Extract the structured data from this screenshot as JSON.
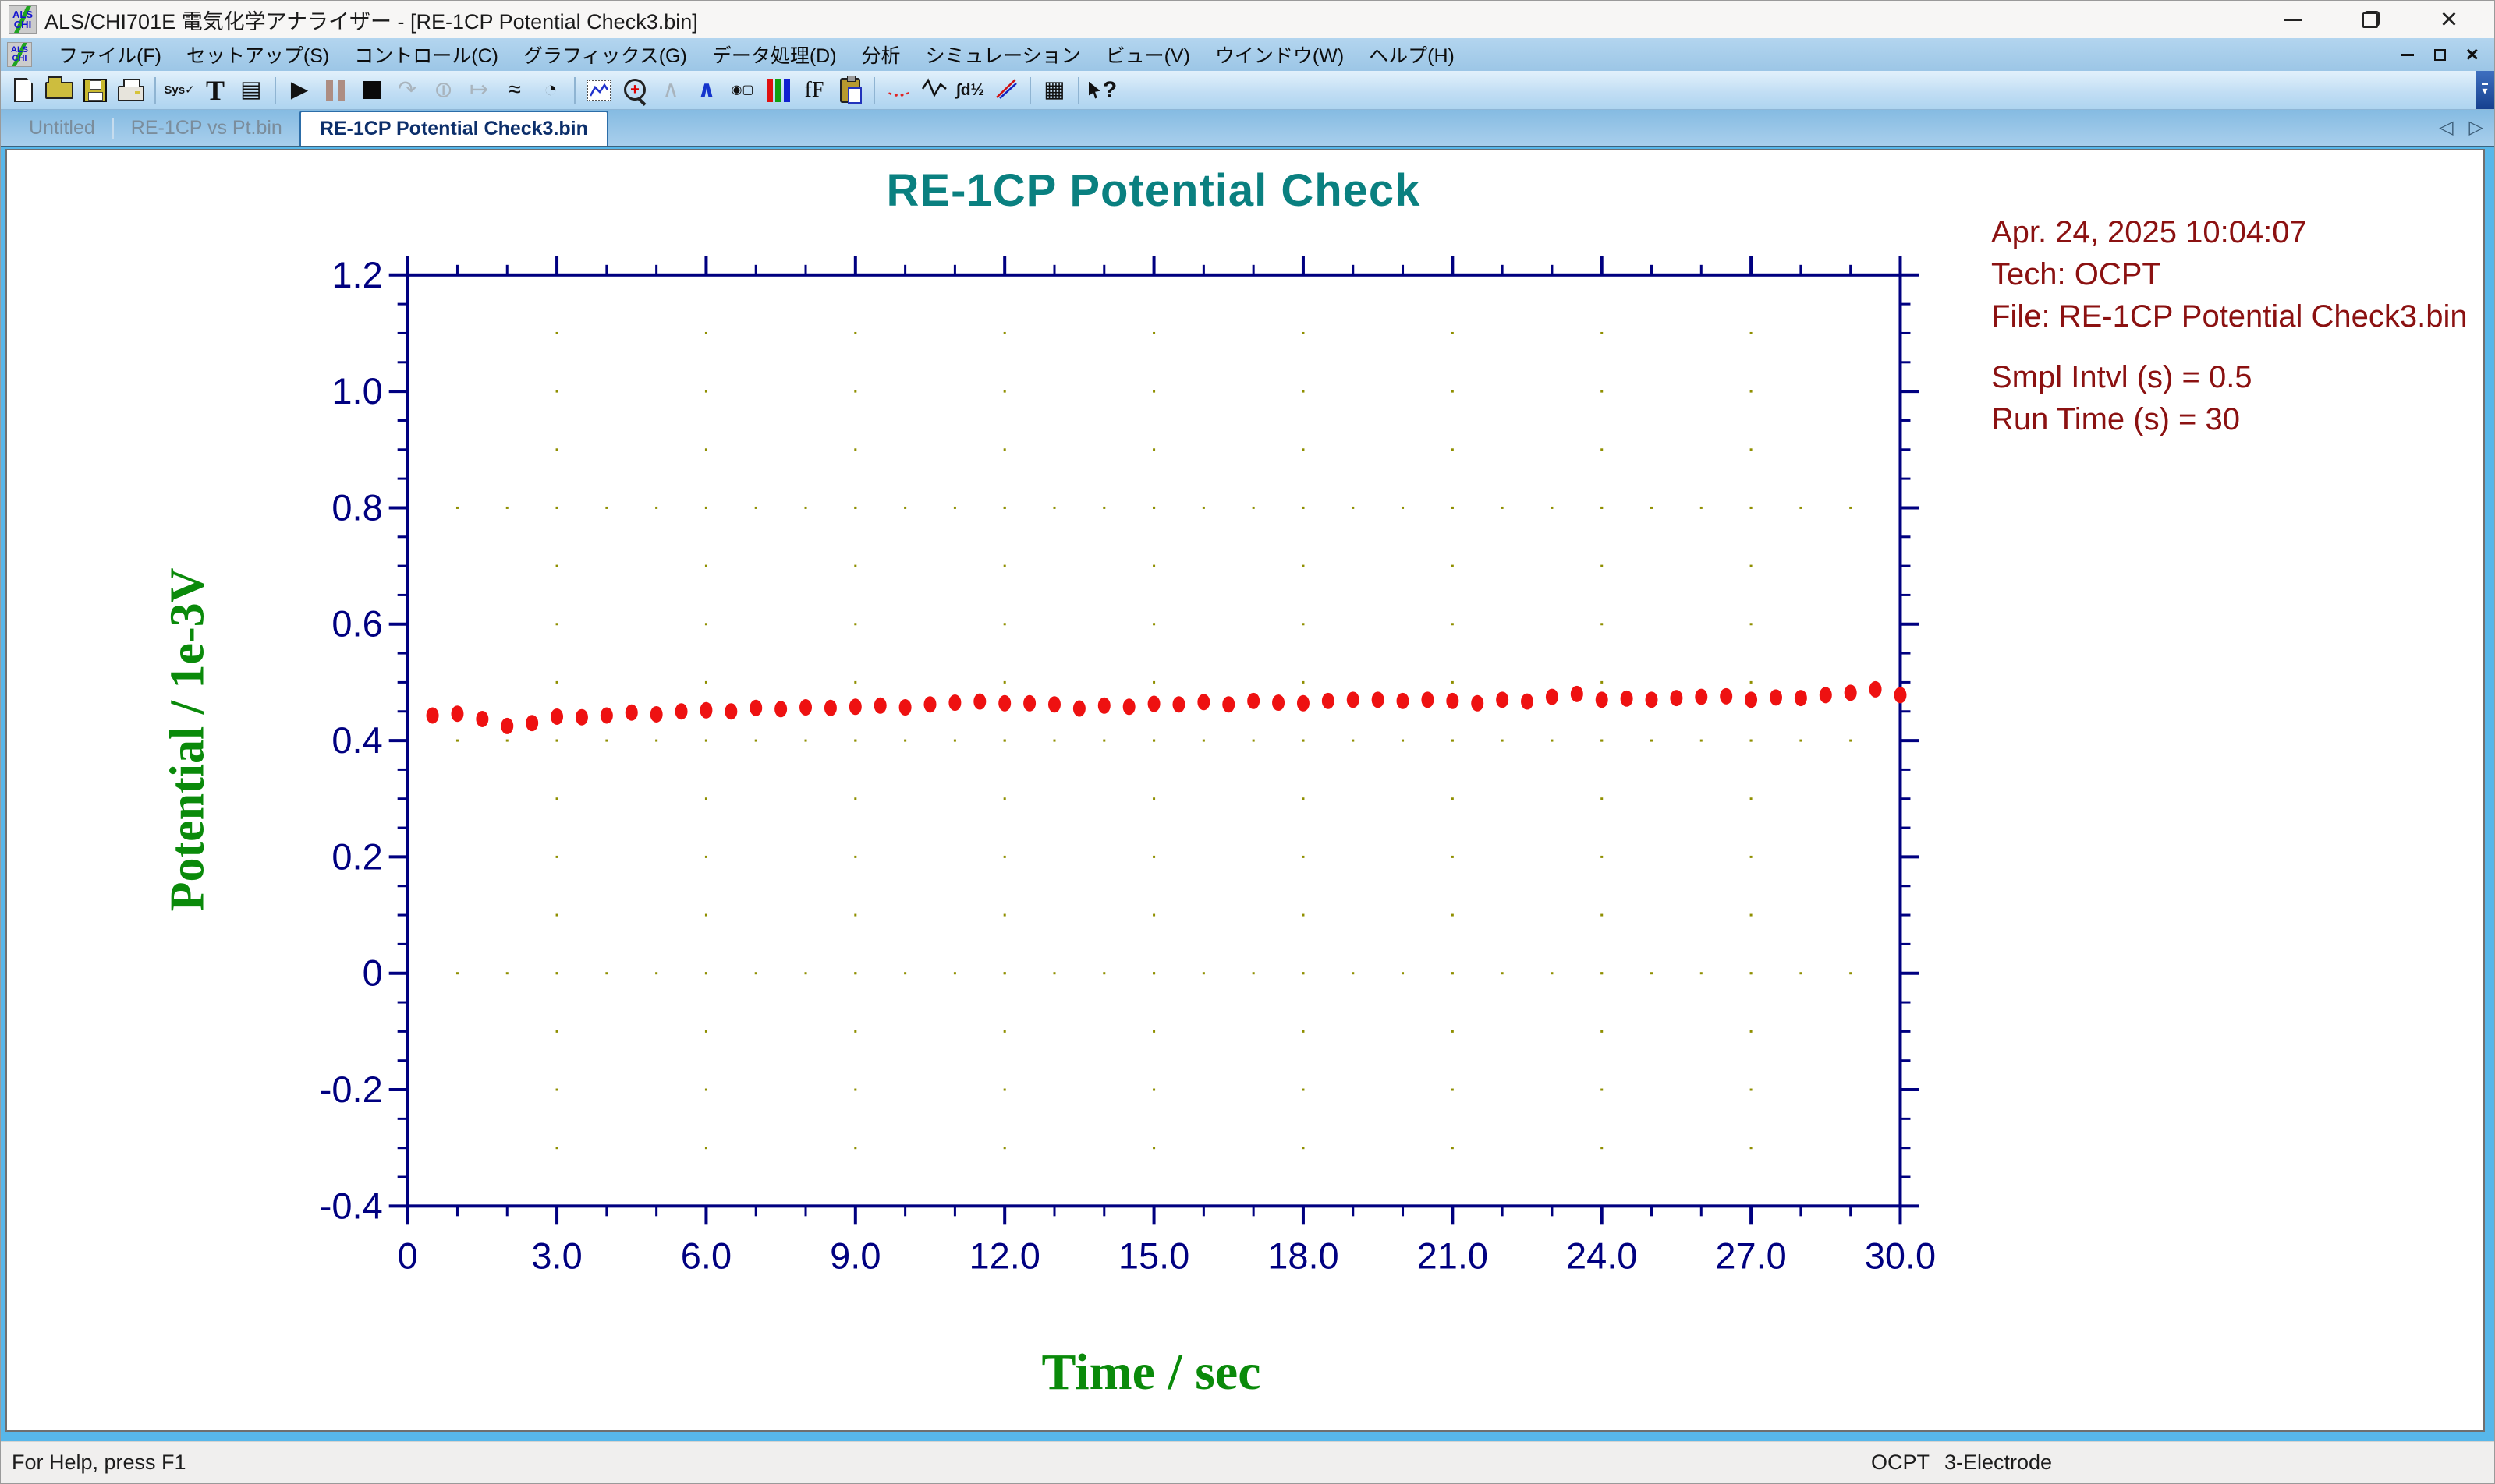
{
  "window": {
    "title": "ALS/CHI701E 電気化学アナライザー - [RE-1CP Potential Check3.bin]",
    "app_badge_top": "ALS",
    "app_badge_bottom": "CHI"
  },
  "menu": {
    "items": [
      "ファイル(F)",
      "セットアップ(S)",
      "コントロール(C)",
      "グラフィックス(G)",
      "データ処理(D)",
      "分析",
      "シミュレーション",
      "ビュー(V)",
      "ウインドウ(W)",
      "ヘルプ(H)"
    ]
  },
  "toolbar": {
    "buttons": [
      "new-file",
      "open-file",
      "save-file",
      "print",
      "system-setup",
      "text-annotation",
      "data-info-window",
      "run-experiment",
      "pause",
      "stop",
      "reverse-scan",
      "hold",
      "repeat-run",
      "ir-compensation",
      "cell-timer",
      "present-data-plot",
      "zoom-in",
      "peak-gray",
      "peak-definition",
      "graph-options",
      "color-legend",
      "font-settings",
      "copy-to-clipboard",
      "smoothing",
      "derivative",
      "integration",
      "baseline-fit",
      "data-listing",
      "context-help"
    ]
  },
  "tabs": {
    "items": [
      {
        "label": "Untitled",
        "active": false
      },
      {
        "label": "RE-1CP vs Pt.bin",
        "active": false
      },
      {
        "label": "RE-1CP Potential Check3.bin",
        "active": true
      }
    ]
  },
  "chart_data": {
    "type": "scatter",
    "title": "RE-1CP Potential Check",
    "xlabel": "Time / sec",
    "ylabel": "Potential / 1e-3V",
    "xlim": [
      0,
      30
    ],
    "ylim": [
      -0.4,
      1.2
    ],
    "x_major_step": 3.0,
    "x_minor_step": 1.0,
    "x_tick_labels": [
      "0",
      "3.0",
      "6.0",
      "9.0",
      "12.0",
      "15.0",
      "18.0",
      "21.0",
      "24.0",
      "27.0",
      "30.0"
    ],
    "y_major_step": 0.2,
    "y_minor_step": 0.05,
    "y_tick_labels": [
      "1.2",
      "1.0",
      "0.8",
      "0.6",
      "0.4",
      "0.2",
      "0",
      "-0.2",
      "-0.4"
    ],
    "grid": "dotted",
    "legend": "none",
    "axis_color": "#000080",
    "grid_color": "#8f8f00",
    "marker_color": "#ee1111",
    "title_color": "#0a8080",
    "label_color": "#0a8a0a",
    "annotation_color": "#8b1111",
    "annotations": [
      "Apr. 24, 2025   10:04:07",
      "Tech: OCPT",
      "File: RE-1CP Potential Check3.bin",
      "",
      "Smpl Intvl (s) = 0.5",
      "Run Time (s) = 30"
    ],
    "x": [
      0.5,
      1.0,
      1.5,
      2.0,
      2.5,
      3.0,
      3.5,
      4.0,
      4.5,
      5.0,
      5.5,
      6.0,
      6.5,
      7.0,
      7.5,
      8.0,
      8.5,
      9.0,
      9.5,
      10.0,
      10.5,
      11.0,
      11.5,
      12.0,
      12.5,
      13.0,
      13.5,
      14.0,
      14.5,
      15.0,
      15.5,
      16.0,
      16.5,
      17.0,
      17.5,
      18.0,
      18.5,
      19.0,
      19.5,
      20.0,
      20.5,
      21.0,
      21.5,
      22.0,
      22.5,
      23.0,
      23.5,
      24.0,
      24.5,
      25.0,
      25.5,
      26.0,
      26.5,
      27.0,
      27.5,
      28.0,
      28.5,
      29.0,
      29.5,
      30.0
    ],
    "y": [
      0.443,
      0.446,
      0.437,
      0.425,
      0.43,
      0.441,
      0.44,
      0.443,
      0.448,
      0.445,
      0.45,
      0.452,
      0.45,
      0.456,
      0.454,
      0.457,
      0.456,
      0.458,
      0.46,
      0.457,
      0.462,
      0.465,
      0.467,
      0.464,
      0.464,
      0.462,
      0.455,
      0.46,
      0.458,
      0.463,
      0.462,
      0.466,
      0.462,
      0.468,
      0.465,
      0.464,
      0.468,
      0.47,
      0.47,
      0.468,
      0.47,
      0.468,
      0.464,
      0.47,
      0.467,
      0.475,
      0.48,
      0.47,
      0.472,
      0.47,
      0.473,
      0.475,
      0.476,
      0.47,
      0.474,
      0.473,
      0.478,
      0.482,
      0.488,
      0.478
    ]
  },
  "status": {
    "help": "For Help, press F1",
    "technique": "OCPT",
    "electrode_mode": "3-Electrode"
  }
}
